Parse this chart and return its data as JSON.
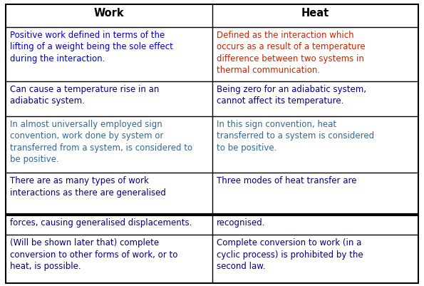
{
  "background_color": "#ffffff",
  "col_headers": [
    "Work",
    "Heat"
  ],
  "rows": [
    {
      "work": "Positive work defined in terms of the\nlifting of a weight being the sole effect\nduring the interaction.",
      "heat": "Defined as the interaction which\noccurs as a result of a temperature\ndifference between two systems in\nthermal communication.",
      "work_color": "#0000cc",
      "heat_color": "#cc2200"
    },
    {
      "work": "Can cause a temperature rise in an\nadiabatic system.",
      "heat": "Being zero for an adiabatic system,\ncannot affect its temperature.",
      "work_color": "#000080",
      "heat_color": "#000080"
    },
    {
      "work": "In almost universally employed sign\nconvention, work done by system or\ntransferred from a system, is considered to\nbe positive.",
      "heat": "In this sign convention, heat\ntransferred to a system is considered\nto be positive.",
      "work_color": "#336699",
      "heat_color": "#336699"
    },
    {
      "work": "There are as many types of work\ninteractions as there are generalised",
      "heat": "Three modes of heat transfer are",
      "work_color": "#000080",
      "heat_color": "#000080"
    },
    {
      "work": "forces, causing generalised displacements.",
      "heat": "recognised.",
      "work_color": "#000080",
      "heat_color": "#000080"
    },
    {
      "work": "(Will be shown later that) complete\nconversion to other forms of work, or to\nheat, is possible.",
      "heat": "Complete conversion to work (in a\ncyclic process) is prohibited by the\nsecond law.",
      "work_color": "#000080",
      "heat_color": "#000080"
    }
  ],
  "font_size": 8.5,
  "header_font_size": 10.5,
  "fig_width": 5.95,
  "fig_height": 4.01,
  "dpi": 100
}
